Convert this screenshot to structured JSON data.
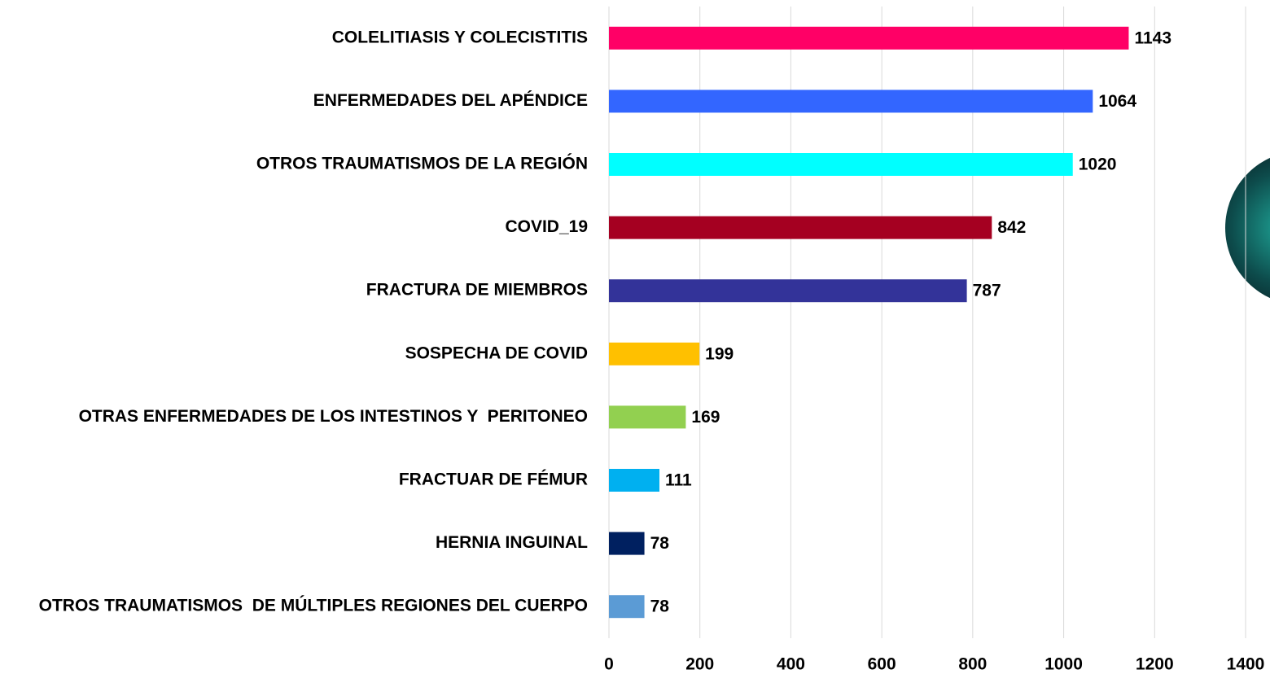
{
  "chart_data": {
    "type": "barh",
    "categories": [
      "COLELITIASIS Y COLECISTITIS",
      "ENFERMEDADES DEL APÉNDICE",
      "OTROS TRAUMATISMOS DE LA REGIÓN",
      "COVID_19",
      "FRACTURA DE MIEMBROS",
      "SOSPECHA DE COVID",
      "OTRAS ENFERMEDADES DE LOS INTESTINOS Y  PERITONEO",
      "FRACTUAR DE FÉMUR",
      "HERNIA INGUINAL",
      "OTROS TRAUMATISMOS  DE MÚLTIPLES REGIONES DEL CUERPO"
    ],
    "values": [
      1143,
      1064,
      1020,
      842,
      787,
      199,
      169,
      111,
      78,
      78
    ],
    "colors": [
      "#ff0066",
      "#3366ff",
      "#00ffff",
      "#a50021",
      "#333399",
      "#ffc000",
      "#92d050",
      "#00b0f0",
      "#002060",
      "#5b9bd5"
    ],
    "xlim": [
      0,
      1400
    ],
    "xticks": [
      0,
      200,
      400,
      600,
      800,
      1000,
      1200,
      1400
    ],
    "grid": true
  }
}
